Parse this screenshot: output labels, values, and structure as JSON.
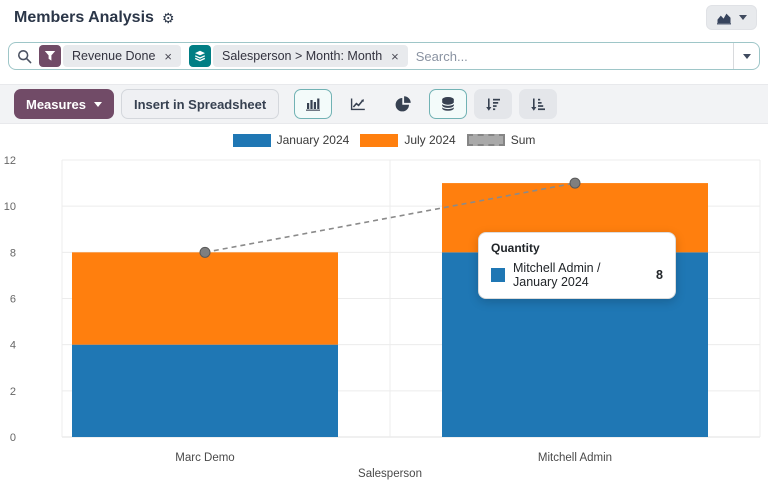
{
  "header": {
    "title": "Members Analysis"
  },
  "search": {
    "placeholder": "Search...",
    "facets": [
      {
        "kind": "filter",
        "label": "Revenue Done",
        "icon": "funnel-icon",
        "color": "#714B67",
        "close": "×"
      },
      {
        "kind": "group-by",
        "label": "Salesperson > Month: Month",
        "icon": "layers-icon",
        "color": "#017e84",
        "close": "×"
      }
    ]
  },
  "toolbar": {
    "measures_label": "Measures",
    "insert_in_spreadsheet_label": "Insert in Spreadsheet",
    "measures_color": "#714B67",
    "view_buttons": [
      {
        "icon": "bar-chart-icon",
        "active": true
      },
      {
        "icon": "line-chart-icon",
        "active": false
      },
      {
        "icon": "pie-chart-icon",
        "active": false
      },
      {
        "icon": "stacked-bars-icon",
        "active": true
      },
      {
        "icon": "sort-descending-icon",
        "active": false
      },
      {
        "icon": "sort-ascending-icon",
        "active": false
      }
    ]
  },
  "chart_data": {
    "type": "bar",
    "stacked": true,
    "title": "",
    "categories": [
      "Marc Demo",
      "Mitchell Admin"
    ],
    "series": [
      {
        "name": "January 2024",
        "type": "bar",
        "values": [
          4,
          8
        ],
        "color": "#1f77b4"
      },
      {
        "name": "July 2024",
        "type": "bar",
        "values": [
          4,
          3
        ],
        "color": "#ff7f0e"
      },
      {
        "name": "Sum",
        "type": "line",
        "values": [
          8,
          11
        ],
        "color": "#8a8a8a",
        "dashed": true
      }
    ],
    "xlabel": "Salesperson",
    "ylabel": "",
    "ylim": [
      0,
      12
    ],
    "yticks": [
      0,
      2,
      4,
      6,
      8,
      10,
      12
    ],
    "legend_position": "top",
    "grid": true
  },
  "tooltip": {
    "title": "Quantity",
    "series_label": "Mitchell Admin / January 2024",
    "value": "8",
    "swatch_color": "#1f77b4"
  },
  "colors": {
    "accent_purple": "#714B67",
    "accent_teal": "#017e84",
    "bar_blue": "#1f77b4",
    "bar_orange": "#ff7f0e",
    "sum_gray": "#8a8a8a"
  }
}
